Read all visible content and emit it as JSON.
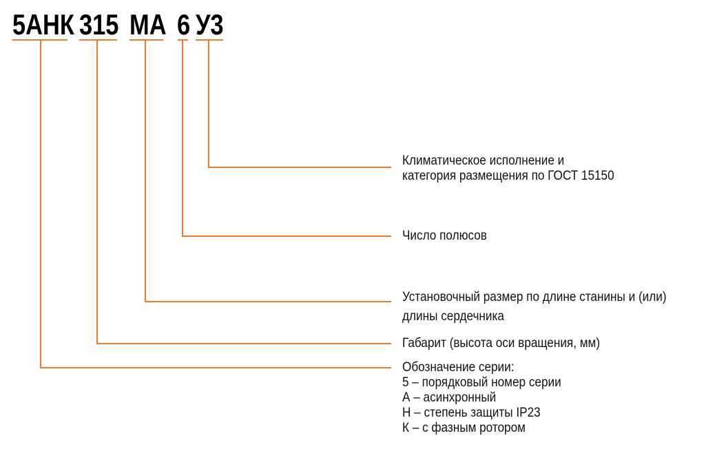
{
  "accent_color": "#f07a2a",
  "code_parts": [
    "5АНК",
    "315",
    "МА",
    "6",
    "У3"
  ],
  "labels": {
    "climate": [
      "Климатическое исполнение и",
      "категория размещения по ГОСТ 15150"
    ],
    "poles": [
      "Число полюсов"
    ],
    "mounting": [
      "Установочный размер по длине станины и (или)",
      "длины сердечника"
    ],
    "frame": [
      "Габарит (высота оси вращения, мм)"
    ],
    "series": [
      "Обозначение серии:",
      "5 – порядковый номер серии",
      "А – асинхронный",
      "Н – степень защиты IP23",
      "К – с фазным ротором"
    ]
  }
}
